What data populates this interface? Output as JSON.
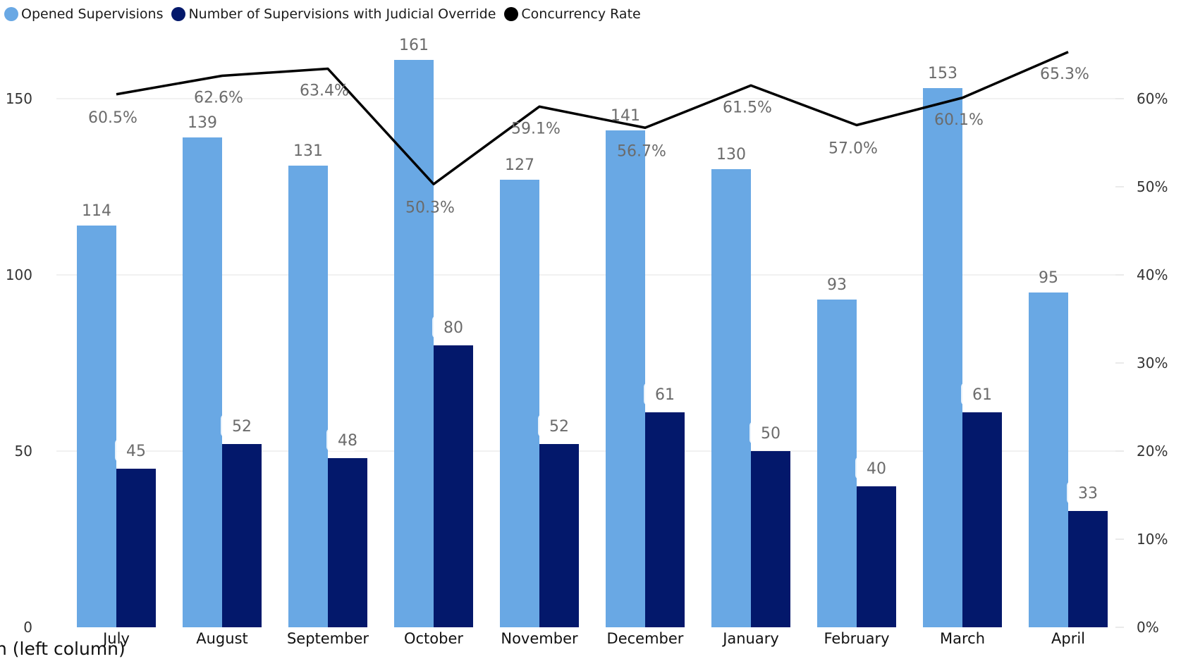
{
  "legend": [
    {
      "label": "Opened Supervisions",
      "color": "#69A8E4"
    },
    {
      "label": "Number of Supervisions with Judicial Override",
      "color": "#03186B"
    },
    {
      "label": "Concurrency Rate",
      "color": "#000000"
    }
  ],
  "footer_label": "n (left column)",
  "chart_data": {
    "type": "bar",
    "categories": [
      "July",
      "August",
      "September",
      "October",
      "November",
      "December",
      "January",
      "February",
      "March",
      "April"
    ],
    "series": [
      {
        "name": "Opened Supervisions",
        "type": "bar",
        "axis": "left",
        "color": "#69A8E4",
        "values": [
          114,
          139,
          131,
          161,
          127,
          141,
          130,
          93,
          153,
          95
        ]
      },
      {
        "name": "Number of Supervisions with Judicial Override",
        "type": "bar",
        "axis": "left",
        "color": "#03186B",
        "values": [
          45,
          52,
          48,
          80,
          52,
          61,
          50,
          40,
          61,
          33
        ]
      },
      {
        "name": "Concurrency Rate",
        "type": "line",
        "axis": "right",
        "color": "#000000",
        "values": [
          60.5,
          62.6,
          63.4,
          50.3,
          59.1,
          56.7,
          61.5,
          57.0,
          60.1,
          65.3
        ],
        "labels": [
          "60.5%",
          "62.6%",
          "63.4%",
          "50.3%",
          "59.1%",
          "56.7%",
          "61.5%",
          "57.0%",
          "60.1%",
          "65.3%"
        ]
      }
    ],
    "y_left": {
      "ticks": [
        0,
        50,
        100,
        150
      ],
      "tick_labels": [
        "0",
        "50",
        "100",
        "150"
      ],
      "range": [
        0,
        170
      ]
    },
    "y_right": {
      "ticks": [
        0,
        10,
        20,
        30,
        40,
        50,
        60
      ],
      "tick_labels": [
        "0%",
        "10%",
        "20%",
        "30%",
        "40%",
        "50%",
        "60%"
      ],
      "range": [
        0,
        68
      ]
    },
    "grid": true,
    "legend_position": "top-left"
  }
}
